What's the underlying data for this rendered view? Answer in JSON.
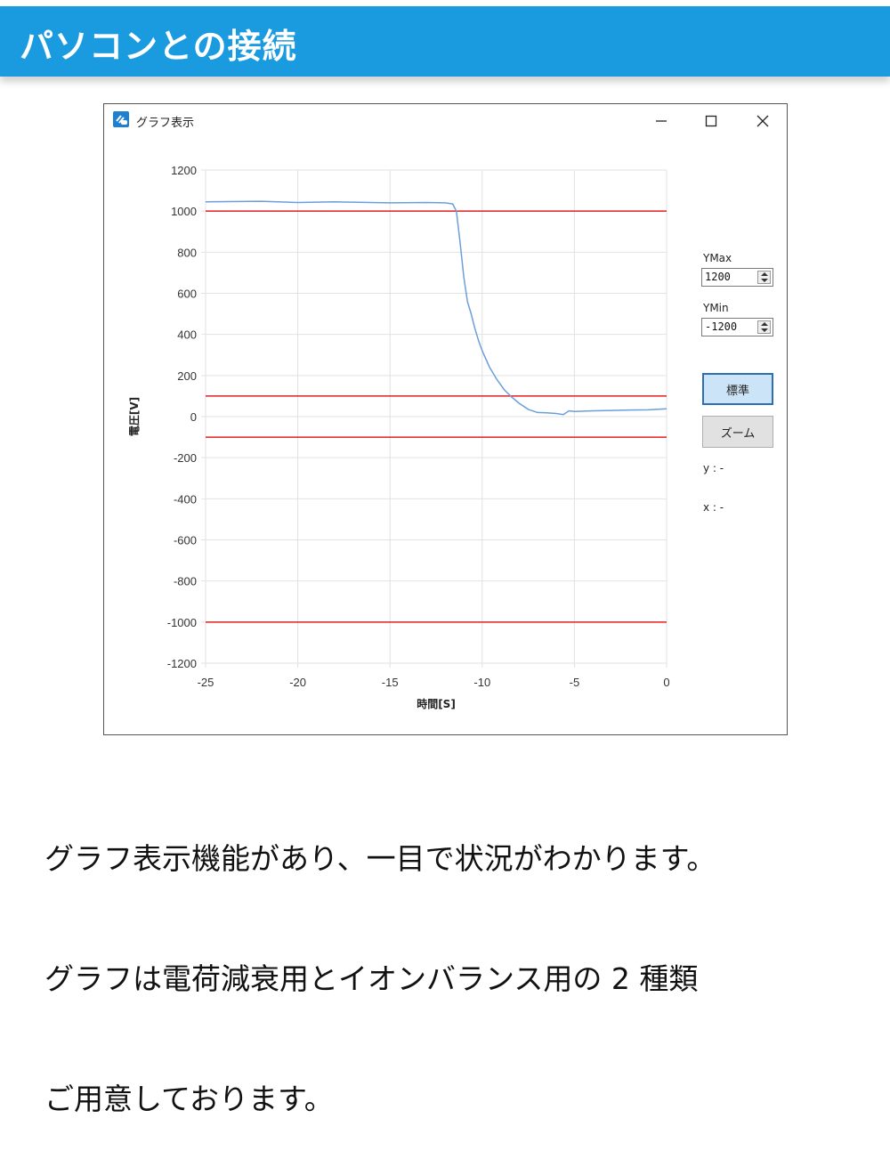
{
  "banner": {
    "title": "パソコンとの接続",
    "color": "#1a9be0"
  },
  "window": {
    "title": "グラフ表示",
    "icon": "app-link-icon",
    "controls": {
      "minimize": "—",
      "maximize": "☐",
      "close": "✕"
    }
  },
  "side_panel": {
    "ymax_label": "YMax",
    "ymax_value": "1200",
    "ymin_label": "YMin",
    "ymin_value": "-1200",
    "standard_button": "標準",
    "zoom_button": "ズーム",
    "y_readout": "y : -",
    "x_readout": "x : -"
  },
  "chart_data": {
    "type": "line",
    "title": "",
    "xlabel": "時間[S]",
    "ylabel": "電圧[V]",
    "xlim": [
      -25,
      0
    ],
    "ylim": [
      -1200,
      1200
    ],
    "x_ticks": [
      "-25",
      "-20",
      "-15",
      "-10",
      "-5",
      "0"
    ],
    "y_ticks": [
      "1200",
      "1000",
      "800",
      "600",
      "400",
      "200",
      "0",
      "-200",
      "-400",
      "-600",
      "-800",
      "-1000",
      "-1200"
    ],
    "grid": true,
    "threshold_lines": {
      "values": [
        1000,
        100,
        -100,
        -1000
      ],
      "color": "#e02020"
    },
    "series": [
      {
        "name": "電圧",
        "color": "#6a9fdc",
        "x": [
          -25,
          -22,
          -20,
          -18,
          -15,
          -13,
          -12,
          -11.6,
          -11.4,
          -11.2,
          -11.0,
          -10.8,
          -10.6,
          -10.4,
          -10.2,
          -10.0,
          -9.6,
          -9.2,
          -8.8,
          -8.4,
          -8.0,
          -7.5,
          -7.0,
          -6.5,
          -6.0,
          -5.6,
          -5.3,
          -5.0,
          -4.0,
          -3.0,
          -2.0,
          -1.0,
          0
        ],
        "y": [
          1045,
          1048,
          1042,
          1045,
          1040,
          1042,
          1040,
          1035,
          1000,
          850,
          680,
          560,
          500,
          430,
          370,
          320,
          240,
          180,
          130,
          95,
          65,
          35,
          20,
          18,
          15,
          10,
          28,
          25,
          28,
          30,
          32,
          33,
          38
        ]
      }
    ]
  },
  "caption": {
    "lines": [
      "グラフ表示機能があり、一目で状況がわかります。",
      "グラフは電荷減衰用とイオンバランス用の 2 種類",
      "ご用意しております。"
    ]
  }
}
